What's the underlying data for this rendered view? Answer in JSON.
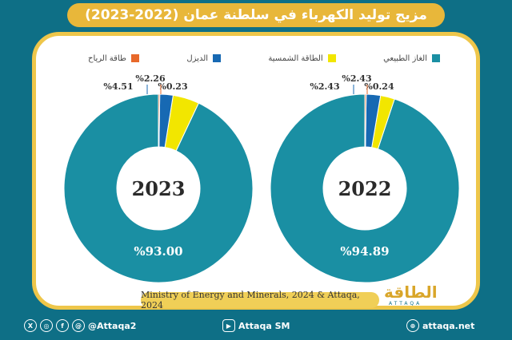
{
  "title": "مزيج توليد الكهرباء في سلطنة عمان (2022-2023)",
  "source": "Ministry of Energy and Minerals, 2024 & Attaqa, 2024",
  "logo": {
    "text": "الطاقة",
    "sub": "ATTAQA"
  },
  "footer": {
    "social_handle": "@Attaqa2",
    "youtube": "Attaqa SM",
    "website": "attaqa.net"
  },
  "colors": {
    "natural_gas": "#1a8fa3",
    "solar": "#f2e600",
    "diesel": "#1769b3",
    "wind": "#e8692a",
    "frame": "#0e6f86",
    "accent": "#eec64a"
  },
  "chart_data": [
    {
      "type": "pie",
      "variant": "donut",
      "center_label": "2023",
      "legend": [
        "الغاز الطبيعي",
        "الطاقة الشمسية",
        "الديزل",
        "طاقة الرياح"
      ],
      "legend_position": "top",
      "slices": [
        {
          "name": "الغاز الطبيعي",
          "value": 93.0,
          "label": "%93.00"
        },
        {
          "name": "الطاقة الشمسية",
          "value": 4.51,
          "label": "%4.51"
        },
        {
          "name": "الديزل",
          "value": 2.26,
          "label": "%2.26"
        },
        {
          "name": "طاقة الرياح",
          "value": 0.23,
          "label": "%0.23"
        }
      ]
    },
    {
      "type": "pie",
      "variant": "donut",
      "center_label": "2022",
      "legend_position": "top",
      "slices": [
        {
          "name": "الغاز الطبيعي",
          "value": 94.89,
          "label": "%94.89"
        },
        {
          "name": "الطاقة الشمسية",
          "value": 2.43,
          "label": "%2.43"
        },
        {
          "name": "الديزل",
          "value": 2.43,
          "label": "%2.43"
        },
        {
          "name": "طاقة الرياح",
          "value": 0.24,
          "label": "%0.24"
        }
      ]
    }
  ]
}
